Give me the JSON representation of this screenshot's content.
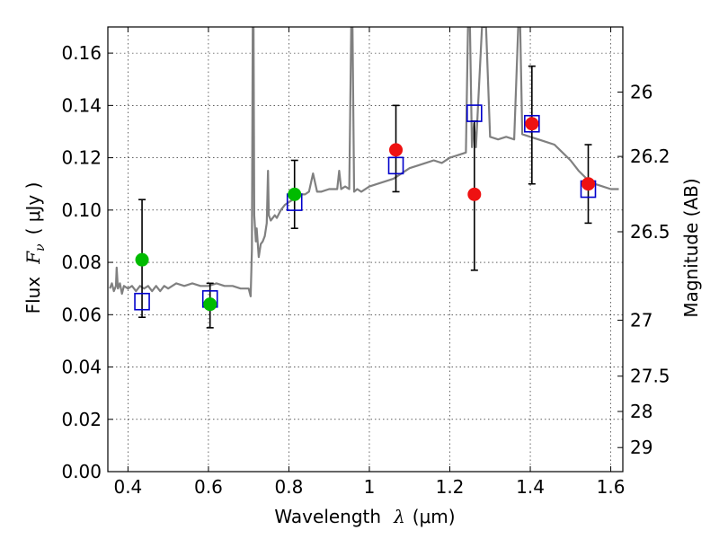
{
  "chart_data": {
    "type": "scatter",
    "xlabel": {
      "prefix": "Wavelength",
      "symbol": "λ",
      "unit": "(μm)"
    },
    "ylabel": {
      "prefix": "Flux",
      "symbol": "F",
      "sub": "ν",
      "unit": "( μJy )"
    },
    "ylabel_right": "Magnitude (AB)",
    "xlim": [
      0.35,
      1.63
    ],
    "ylim": [
      0.0,
      0.17
    ],
    "grid": true,
    "x_ticks": [
      0.4,
      0.6,
      0.8,
      1.0,
      1.2,
      1.4,
      1.6
    ],
    "x_tick_labels": [
      "0.4",
      "0.6",
      "0.8",
      "1",
      "1.2",
      "1.4",
      "1.6"
    ],
    "y_ticks": [
      0.0,
      0.02,
      0.04,
      0.06,
      0.08,
      0.1,
      0.12,
      0.14,
      0.16
    ],
    "y_tick_labels": [
      "0.00",
      "0.02",
      "0.04",
      "0.06",
      "0.08",
      "0.10",
      "0.12",
      "0.14",
      "0.16"
    ],
    "right_ticks": [
      {
        "flux": 0.1451,
        "label": "26"
      },
      {
        "flux": 0.1205,
        "label": "26.2"
      },
      {
        "flux": 0.0917,
        "label": "26.5"
      },
      {
        "flux": 0.0579,
        "label": "27"
      },
      {
        "flux": 0.0365,
        "label": "27.5"
      },
      {
        "flux": 0.023,
        "label": "28"
      },
      {
        "flux": 0.0092,
        "label": "29"
      }
    ],
    "model_spectrum": {
      "color": "#808080",
      "points": [
        [
          0.355,
          0.07
        ],
        [
          0.36,
          0.072
        ],
        [
          0.365,
          0.069
        ],
        [
          0.37,
          0.071
        ],
        [
          0.372,
          0.078
        ],
        [
          0.375,
          0.07
        ],
        [
          0.38,
          0.072
        ],
        [
          0.385,
          0.068
        ],
        [
          0.39,
          0.071
        ],
        [
          0.4,
          0.07
        ],
        [
          0.41,
          0.071
        ],
        [
          0.42,
          0.069
        ],
        [
          0.43,
          0.071
        ],
        [
          0.44,
          0.07
        ],
        [
          0.45,
          0.071
        ],
        [
          0.46,
          0.069
        ],
        [
          0.47,
          0.071
        ],
        [
          0.48,
          0.069
        ],
        [
          0.49,
          0.071
        ],
        [
          0.5,
          0.07
        ],
        [
          0.52,
          0.072
        ],
        [
          0.54,
          0.071
        ],
        [
          0.56,
          0.072
        ],
        [
          0.58,
          0.071
        ],
        [
          0.6,
          0.071
        ],
        [
          0.62,
          0.072
        ],
        [
          0.64,
          0.071
        ],
        [
          0.66,
          0.071
        ],
        [
          0.68,
          0.07
        ],
        [
          0.7,
          0.07
        ],
        [
          0.705,
          0.067
        ],
        [
          0.708,
          0.085
        ],
        [
          0.71,
          0.17
        ],
        [
          0.712,
          0.17
        ],
        [
          0.714,
          0.098
        ],
        [
          0.718,
          0.088
        ],
        [
          0.72,
          0.093
        ],
        [
          0.725,
          0.082
        ],
        [
          0.73,
          0.087
        ],
        [
          0.735,
          0.088
        ],
        [
          0.74,
          0.09
        ],
        [
          0.745,
          0.095
        ],
        [
          0.748,
          0.115
        ],
        [
          0.75,
          0.098
        ],
        [
          0.755,
          0.096
        ],
        [
          0.76,
          0.097
        ],
        [
          0.765,
          0.098
        ],
        [
          0.77,
          0.097
        ],
        [
          0.78,
          0.1
        ],
        [
          0.79,
          0.102
        ],
        [
          0.8,
          0.103
        ],
        [
          0.81,
          0.104
        ],
        [
          0.82,
          0.105
        ],
        [
          0.83,
          0.106
        ],
        [
          0.84,
          0.106
        ],
        [
          0.85,
          0.107
        ],
        [
          0.86,
          0.114
        ],
        [
          0.87,
          0.107
        ],
        [
          0.88,
          0.107
        ],
        [
          0.9,
          0.108
        ],
        [
          0.92,
          0.108
        ],
        [
          0.925,
          0.115
        ],
        [
          0.93,
          0.108
        ],
        [
          0.94,
          0.109
        ],
        [
          0.95,
          0.108
        ],
        [
          0.955,
          0.17
        ],
        [
          0.958,
          0.17
        ],
        [
          0.962,
          0.107
        ],
        [
          0.97,
          0.108
        ],
        [
          0.98,
          0.107
        ],
        [
          1.0,
          0.109
        ],
        [
          1.02,
          0.11
        ],
        [
          1.04,
          0.111
        ],
        [
          1.06,
          0.112
        ],
        [
          1.08,
          0.114
        ],
        [
          1.1,
          0.116
        ],
        [
          1.12,
          0.117
        ],
        [
          1.14,
          0.118
        ],
        [
          1.16,
          0.119
        ],
        [
          1.18,
          0.118
        ],
        [
          1.2,
          0.12
        ],
        [
          1.22,
          0.121
        ],
        [
          1.24,
          0.122
        ],
        [
          1.245,
          0.17
        ],
        [
          1.25,
          0.17
        ],
        [
          1.255,
          0.124
        ],
        [
          1.26,
          0.133
        ],
        [
          1.265,
          0.124
        ],
        [
          1.28,
          0.17
        ],
        [
          1.29,
          0.17
        ],
        [
          1.3,
          0.128
        ],
        [
          1.32,
          0.127
        ],
        [
          1.34,
          0.128
        ],
        [
          1.36,
          0.127
        ],
        [
          1.37,
          0.17
        ],
        [
          1.375,
          0.17
        ],
        [
          1.38,
          0.129
        ],
        [
          1.4,
          0.128
        ],
        [
          1.42,
          0.127
        ],
        [
          1.44,
          0.126
        ],
        [
          1.46,
          0.125
        ],
        [
          1.48,
          0.122
        ],
        [
          1.5,
          0.119
        ],
        [
          1.52,
          0.115
        ],
        [
          1.54,
          0.112
        ],
        [
          1.56,
          0.11
        ],
        [
          1.58,
          0.109
        ],
        [
          1.6,
          0.108
        ],
        [
          1.62,
          0.108
        ]
      ]
    },
    "model_photometry": {
      "color": "#0000cc",
      "marker": "square",
      "x": [
        0.435,
        0.604,
        0.814,
        1.066,
        1.261,
        1.404,
        1.544
      ],
      "y": [
        0.065,
        0.066,
        0.103,
        0.117,
        0.137,
        0.133,
        0.108
      ]
    },
    "observed_green": {
      "color": "#00bb00",
      "marker": "circle",
      "x": [
        0.435,
        0.604,
        0.814
      ],
      "y": [
        0.081,
        0.064,
        0.106
      ],
      "err_low": [
        0.059,
        0.055,
        0.093
      ],
      "err_high": [
        0.104,
        0.072,
        0.119
      ]
    },
    "observed_red": {
      "color": "#ee1111",
      "marker": "circle",
      "x": [
        1.066,
        1.261,
        1.404,
        1.544
      ],
      "y": [
        0.123,
        0.106,
        0.133,
        0.11
      ],
      "err_low": [
        0.107,
        0.077,
        0.11,
        0.095
      ],
      "err_high": [
        0.14,
        0.134,
        0.155,
        0.125
      ]
    }
  }
}
